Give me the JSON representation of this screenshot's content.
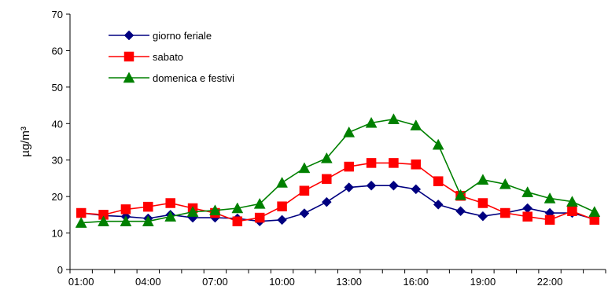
{
  "chart_data": {
    "type": "line",
    "ylabel": "µg/m³",
    "xlabel": "",
    "ylim": [
      0,
      70
    ],
    "yticks": [
      0,
      10,
      20,
      30,
      40,
      50,
      60,
      70
    ],
    "x": [
      "01:00",
      "02:00",
      "03:00",
      "04:00",
      "05:00",
      "06:00",
      "07:00",
      "08:00",
      "09:00",
      "10:00",
      "11:00",
      "12:00",
      "13:00",
      "14:00",
      "15:00",
      "16:00",
      "17:00",
      "18:00",
      "19:00",
      "20:00",
      "21:00",
      "22:00",
      "23:00",
      "24:00"
    ],
    "xtick_labels": [
      "01:00",
      "",
      "",
      "04:00",
      "",
      "",
      "07:00",
      "",
      "",
      "10:00",
      "",
      "",
      "13:00",
      "",
      "",
      "16:00",
      "",
      "",
      "19:00",
      "",
      "",
      "22:00",
      "",
      ""
    ],
    "grid": false,
    "legend_position": "top-left",
    "series": [
      {
        "name": "giorno feriale",
        "color": "#000080",
        "marker": "diamond",
        "values": [
          15.5,
          14.8,
          14.5,
          14.0,
          15.0,
          14.2,
          14.2,
          14.0,
          13.2,
          13.6,
          15.4,
          18.5,
          22.5,
          23.0,
          23.0,
          22.0,
          17.8,
          16.0,
          14.6,
          15.5,
          16.8,
          15.5,
          15.5,
          13.8
        ]
      },
      {
        "name": "sabato",
        "color": "#ff0000",
        "marker": "square",
        "values": [
          15.5,
          15.0,
          16.5,
          17.2,
          18.2,
          16.8,
          15.5,
          13.2,
          14.2,
          17.3,
          21.6,
          24.8,
          28.2,
          29.2,
          29.2,
          28.8,
          24.2,
          20.2,
          18.2,
          15.5,
          14.5,
          13.6,
          16.0,
          13.6
        ]
      },
      {
        "name": "domenica e festivi",
        "color": "#008000",
        "marker": "triangle",
        "values": [
          12.8,
          13.2,
          13.2,
          13.2,
          14.5,
          15.8,
          16.2,
          16.8,
          18.0,
          23.8,
          27.8,
          30.5,
          37.6,
          40.2,
          41.2,
          39.5,
          34.2,
          20.4,
          24.6,
          23.4,
          21.2,
          19.5,
          18.6,
          15.8
        ]
      }
    ]
  }
}
